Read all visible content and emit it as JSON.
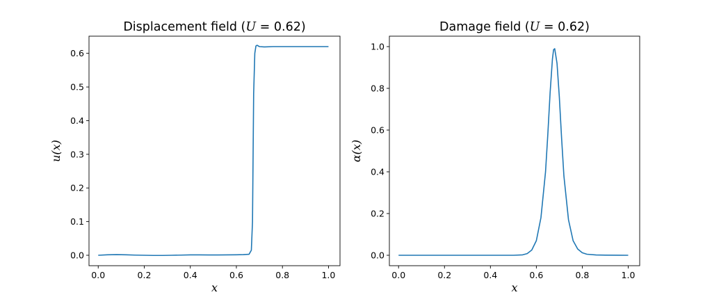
{
  "chart_data": [
    {
      "type": "line",
      "title": "Displacement field (U = 0.62)",
      "title_parts": {
        "prefix": "Displacement field (",
        "var": "U",
        "eq": " = 0.62)"
      },
      "xlabel": "x",
      "ylabel": "u(x)",
      "xlim": [
        -0.04,
        1.05
      ],
      "ylim": [
        -0.031,
        0.651
      ],
      "xticks": [
        "0.0",
        "0.2",
        "0.4",
        "0.6",
        "0.8",
        "1.0"
      ],
      "yticks": [
        "0.0",
        "0.1",
        "0.2",
        "0.3",
        "0.4",
        "0.5",
        "0.6"
      ],
      "grid": false,
      "color": "#1f77b4",
      "x": [
        0.0,
        0.04,
        0.08,
        0.12,
        0.16,
        0.2,
        0.24,
        0.28,
        0.32,
        0.36,
        0.4,
        0.44,
        0.48,
        0.52,
        0.56,
        0.6,
        0.63,
        0.655,
        0.665,
        0.67,
        0.675,
        0.68,
        0.685,
        0.69,
        0.7,
        0.72,
        0.76,
        0.8,
        0.85,
        0.9,
        0.95,
        1.0
      ],
      "y": [
        0.0,
        0.0015,
        0.002,
        0.0015,
        0.0005,
        0.0,
        -0.0005,
        -0.0005,
        0.0,
        0.0005,
        0.0012,
        0.0012,
        0.0008,
        0.0008,
        0.0012,
        0.0015,
        0.002,
        0.003,
        0.015,
        0.1,
        0.48,
        0.6,
        0.622,
        0.624,
        0.62,
        0.619,
        0.62,
        0.62,
        0.62,
        0.62,
        0.62,
        0.62
      ]
    },
    {
      "type": "line",
      "title": "Damage field (U = 0.62)",
      "title_parts": {
        "prefix": "Damage field (",
        "var": "U",
        "eq": " = 0.62)"
      },
      "xlabel": "x",
      "ylabel": "α(x)",
      "xlim": [
        -0.04,
        1.05
      ],
      "ylim": [
        -0.05,
        1.05
      ],
      "xticks": [
        "0.0",
        "0.2",
        "0.4",
        "0.6",
        "0.8",
        "1.0"
      ],
      "yticks": [
        "0.0",
        "0.2",
        "0.4",
        "0.6",
        "0.8",
        "1.0"
      ],
      "grid": false,
      "color": "#1f77b4",
      "x": [
        0.0,
        0.1,
        0.2,
        0.3,
        0.4,
        0.5,
        0.54,
        0.56,
        0.58,
        0.6,
        0.62,
        0.64,
        0.65,
        0.66,
        0.67,
        0.675,
        0.68,
        0.69,
        0.7,
        0.71,
        0.72,
        0.74,
        0.76,
        0.78,
        0.8,
        0.82,
        0.86,
        0.9,
        1.0
      ],
      "y": [
        0.0,
        0.0,
        0.0,
        0.0,
        0.0,
        0.0,
        0.002,
        0.008,
        0.025,
        0.07,
        0.18,
        0.4,
        0.58,
        0.78,
        0.94,
        0.985,
        0.99,
        0.92,
        0.76,
        0.56,
        0.38,
        0.17,
        0.07,
        0.03,
        0.012,
        0.005,
        0.0015,
        0.0005,
        0.0
      ]
    }
  ]
}
